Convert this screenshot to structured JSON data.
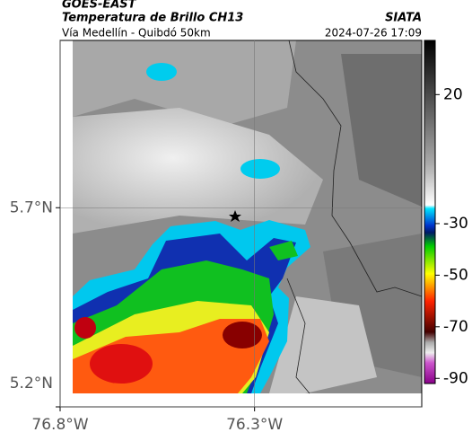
{
  "header": {
    "satellite": "GOES-EAST",
    "product": "Temperatura de Brillo CH13",
    "region": "Vía Medellín - Quibdó 50km",
    "source": "SIATA",
    "datetime": "2024-07-26 17:09"
  },
  "map": {
    "xlim": [
      -76.8,
      -75.87
    ],
    "ylim": [
      5.2,
      6.12
    ],
    "xticks": [
      {
        "value": -76.8,
        "label": "76.8°W"
      },
      {
        "value": -76.3,
        "label": "76.3°W"
      }
    ],
    "yticks": [
      {
        "value": 5.2,
        "label": "5.2°N"
      },
      {
        "value": 5.7,
        "label": "5.7°N"
      }
    ],
    "grid": true
  },
  "colorbar": {
    "lim": [
      -92,
      41
    ],
    "ticks": [
      20,
      -30,
      -50,
      -70,
      -90
    ]
  }
}
